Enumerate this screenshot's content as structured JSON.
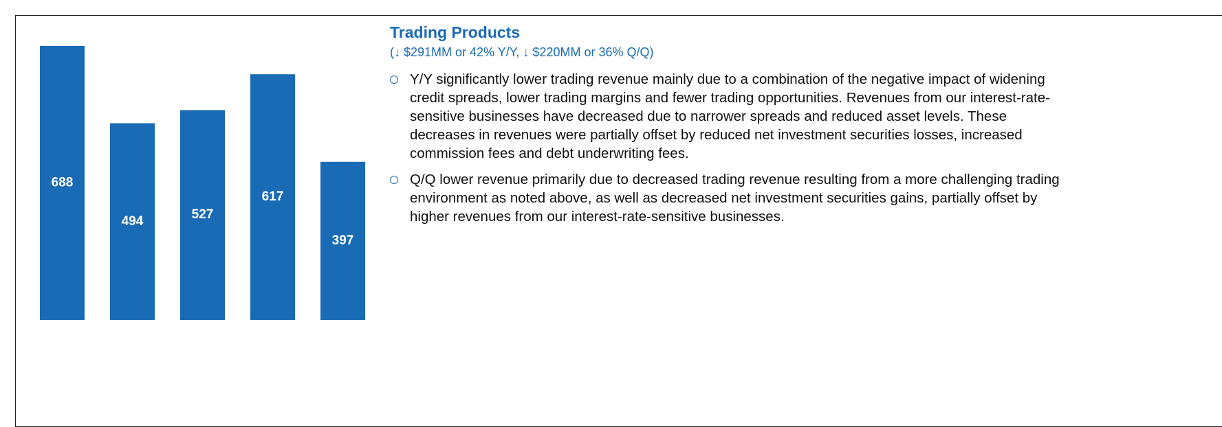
{
  "chart_data": {
    "type": "bar",
    "categories": [
      null,
      null,
      null,
      null,
      null
    ],
    "values": [
      688,
      494,
      527,
      617,
      397
    ],
    "color": "#1a6bb5"
  },
  "panel": {
    "title": "Trading Products",
    "subtitle": "(↓ $291MM or 42% Y/Y, ↓ $220MM or 36% Q/Q)",
    "bullets": [
      "Y/Y significantly lower trading revenue mainly due to a combination of the negative impact of widening credit spreads, lower trading margins and fewer trading opportunities.  Revenues from our interest-rate-sensitive businesses have decreased due to narrower spreads and reduced asset levels.  These decreases in revenues were partially offset by reduced net investment securities losses, increased commission fees and debt underwriting fees.",
      "Q/Q lower revenue primarily due to decreased trading revenue resulting from a more challenging trading environment as noted above, as well as decreased net investment securities gains, partially offset by higher revenues from our interest-rate-sensitive businesses."
    ]
  }
}
